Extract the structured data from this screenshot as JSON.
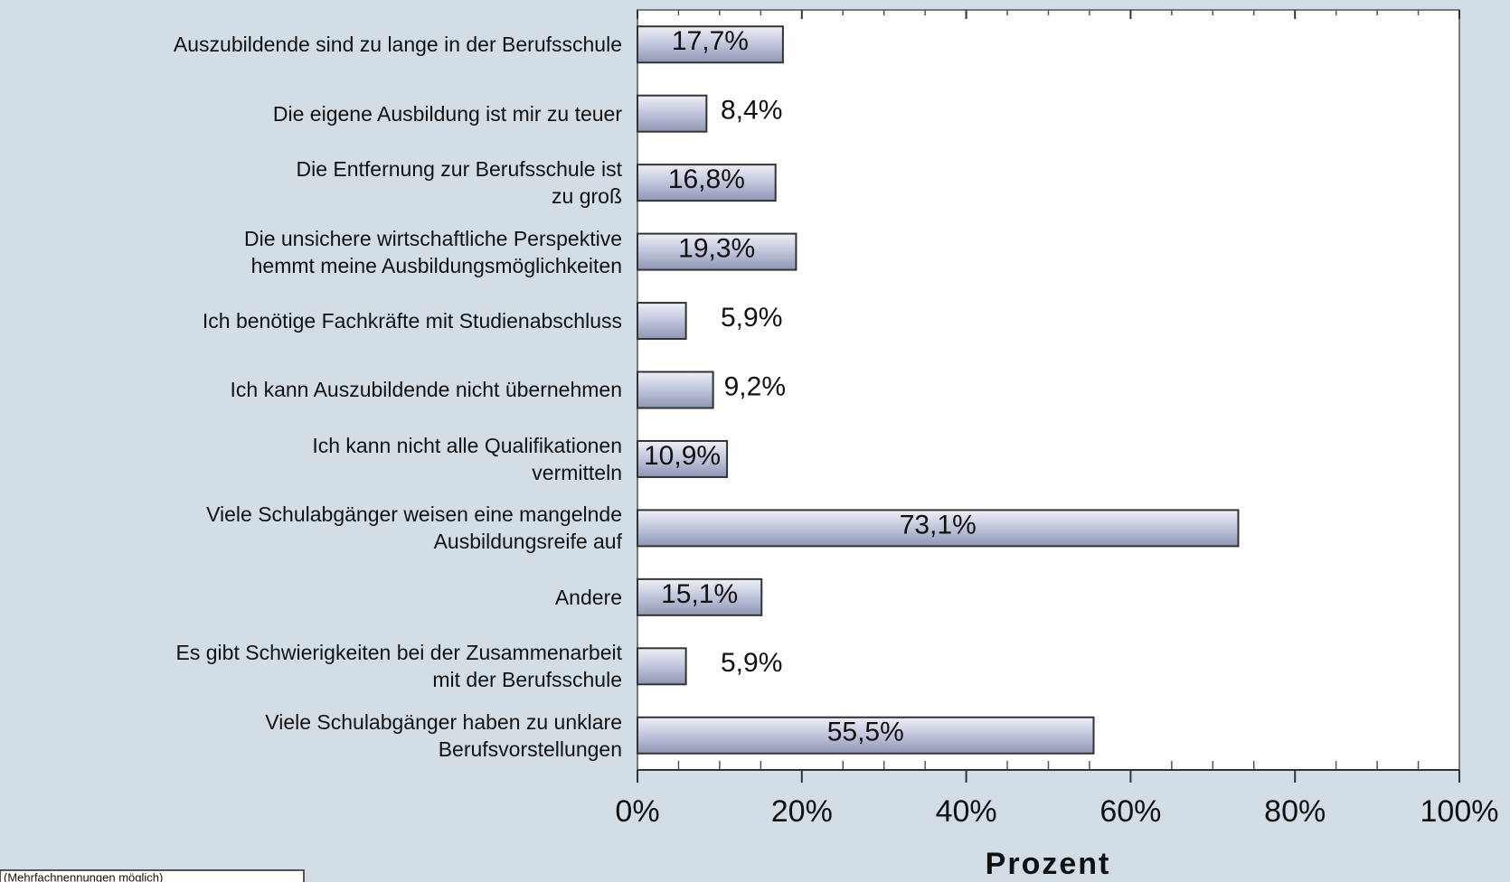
{
  "chart_data": {
    "type": "bar",
    "orientation": "horizontal",
    "categories": [
      "Auszubildende sind zu lange in der Berufsschule",
      "Die eigene Ausbildung ist mir zu teuer",
      "Die Entfernung zur Berufsschule ist\nzu groß",
      "Die unsichere wirtschaftliche Perspektive\nhemmt meine Ausbildungsmöglichkeiten",
      "Ich benötige Fachkräfte mit Studienabschluss",
      "Ich kann Auszubildende nicht übernehmen",
      "Ich kann nicht alle Qualifikationen\nvermitteln",
      "Viele Schulabgänger weisen eine mangelnde\nAusbildungsreife auf",
      "Andere",
      "Es gibt Schwierigkeiten bei der Zusammenarbeit\nmit der Berufsschule",
      "Viele Schulabgänger haben zu unklare\nBerufsvorstellungen"
    ],
    "values": [
      17.7,
      8.4,
      16.8,
      19.3,
      5.9,
      9.2,
      10.9,
      73.1,
      15.1,
      5.9,
      55.5
    ],
    "value_labels": [
      "17,7%",
      "8,4%",
      "16,8%",
      "19,3%",
      "5,9%",
      "9,2%",
      "10,9%",
      "73,1%",
      "15,1%",
      "5,9%",
      "55,5%"
    ],
    "color": "#b7bfd6",
    "xlim": [
      0,
      100
    ],
    "xticks": [
      {
        "value": 0,
        "label": "0%"
      },
      {
        "value": 20,
        "label": "20%"
      },
      {
        "value": 40,
        "label": "40%"
      },
      {
        "value": 60,
        "label": "60%"
      },
      {
        "value": 80,
        "label": "80%"
      },
      {
        "value": 100,
        "label": "100%"
      }
    ],
    "xlabel": "Prozent",
    "footnote": "(Mehrfachnennungen möglich)"
  }
}
